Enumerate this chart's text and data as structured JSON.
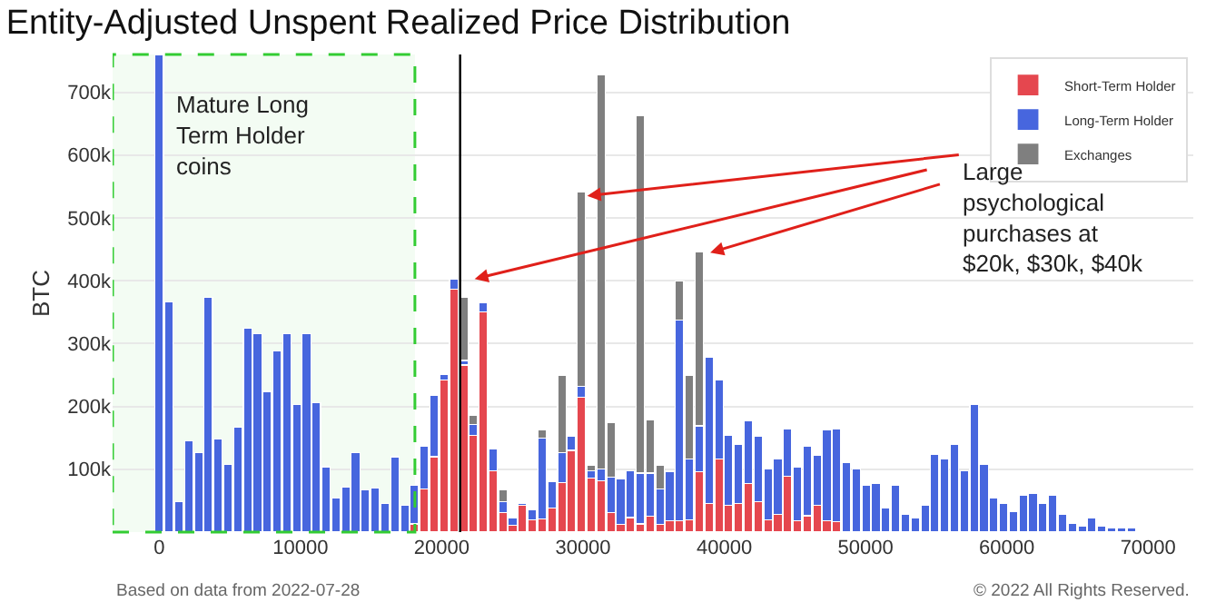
{
  "chart_data": {
    "type": "bar",
    "title": "Entity-Adjusted Unspent Realized Price Distribution",
    "ylabel": "BTC",
    "stacked": true,
    "grid": "y",
    "legend": "top right",
    "x": [
      0,
      695,
      1390,
      2085,
      2780,
      3475,
      4170,
      4865,
      5560,
      6255,
      6950,
      7645,
      8340,
      9035,
      9730,
      10425,
      11120,
      11815,
      12510,
      13205,
      13900,
      14595,
      15290,
      15985,
      16680,
      17375,
      18070,
      18765,
      19460,
      20155,
      20850,
      21545,
      22240,
      22935,
      23630,
      24325,
      25020,
      25715,
      26410,
      27105,
      27800,
      28495,
      29190,
      29885,
      30580,
      31275,
      31970,
      32665,
      33360,
      34055,
      34750,
      35445,
      36140,
      36835,
      37530,
      38225,
      38920,
      39615,
      40310,
      41005,
      41700,
      42395,
      43090,
      43785,
      44480,
      45175,
      45870,
      46565,
      47260,
      47955,
      48650,
      49345,
      50040,
      50735,
      51430,
      52125,
      52820,
      53515,
      54210,
      54905,
      55600,
      56295,
      56990,
      57685,
      58380,
      59075,
      59770,
      60465,
      61160,
      61855,
      62550,
      63245,
      63940,
      64635,
      65330,
      66025,
      66720,
      67415,
      68110,
      68805
    ],
    "xlim": [
      -3300,
      73200
    ],
    "xticks": [
      0,
      10000,
      20000,
      30000,
      40000,
      50000,
      60000,
      70000
    ],
    "ylim": [
      0,
      760000
    ],
    "yticks": [
      {
        "value": 100000,
        "label": "100k"
      },
      {
        "value": 200000,
        "label": "200k"
      },
      {
        "value": 300000,
        "label": "300k"
      },
      {
        "value": 400000,
        "label": "400k"
      },
      {
        "value": 500000,
        "label": "500k"
      },
      {
        "value": 600000,
        "label": "600k"
      },
      {
        "value": 700000,
        "label": "700k"
      }
    ],
    "series": [
      {
        "name": "Short-Term Holder",
        "color": "#e5474f",
        "values": [
          null,
          null,
          null,
          null,
          null,
          null,
          null,
          null,
          null,
          null,
          null,
          null,
          null,
          null,
          null,
          null,
          null,
          null,
          null,
          null,
          null,
          null,
          null,
          null,
          null,
          null,
          13000,
          69000,
          120000,
          242000,
          387000,
          266000,
          154000,
          350000,
          98000,
          31000,
          11000,
          43000,
          20000,
          21000,
          38000,
          79000,
          130000,
          215000,
          86000,
          82000,
          31000,
          12000,
          23000,
          13000,
          25000,
          12000,
          18000,
          18000,
          20000,
          96000,
          46000,
          116000,
          43000,
          46000,
          77000,
          48000,
          20000,
          28000,
          89000,
          18000,
          26000,
          43000,
          18000,
          17000,
          null,
          null,
          null,
          null,
          null,
          null,
          null,
          null,
          null,
          null,
          null,
          null,
          null,
          null,
          null,
          null,
          null,
          null,
          null,
          null,
          null,
          null,
          null,
          null,
          null,
          null,
          null,
          null,
          null,
          null
        ]
      },
      {
        "name": "Long-Term Holder",
        "color": "#4766de",
        "values": [
          760000,
          366000,
          48000,
          145000,
          127000,
          373000,
          148000,
          108000,
          167000,
          324000,
          316000,
          224000,
          288000,
          316000,
          203000,
          316000,
          206000,
          104000,
          54000,
          72000,
          127000,
          67000,
          70000,
          46000,
          120000,
          43000,
          62000,
          68000,
          97000,
          9000,
          15000,
          7000,
          17000,
          15000,
          35000,
          17000,
          11000,
          3000,
          15000,
          129000,
          42000,
          48000,
          22000,
          17000,
          12000,
          19000,
          57000,
          72000,
          75000,
          81000,
          69000,
          57000,
          78000,
          319000,
          96000,
          73000,
          233000,
          126000,
          111000,
          94000,
          100000,
          104000,
          81000,
          88000,
          75000,
          85000,
          111000,
          79000,
          144000,
          147000,
          111000,
          101000,
          74000,
          77000,
          38000,
          75000,
          28000,
          23000,
          43000,
          123000,
          117000,
          140000,
          98000,
          203000,
          108000,
          55000,
          46000,
          33000,
          59000,
          62000,
          45000,
          58000,
          28000,
          14000,
          9000,
          23000,
          9000,
          6000,
          6000,
          6000
        ]
      },
      {
        "name": "Exchanges",
        "color": "#7f7f7f",
        "values": [
          null,
          null,
          null,
          null,
          null,
          null,
          null,
          null,
          null,
          null,
          null,
          null,
          null,
          null,
          null,
          null,
          null,
          null,
          null,
          null,
          null,
          null,
          null,
          null,
          null,
          null,
          null,
          null,
          null,
          null,
          null,
          100000,
          15000,
          null,
          null,
          19000,
          null,
          null,
          null,
          12000,
          null,
          123000,
          null,
          309000,
          8000,
          626000,
          86000,
          null,
          null,
          568000,
          85000,
          37000,
          null,
          63000,
          134000,
          277000,
          null,
          null,
          null,
          null,
          null,
          null,
          null,
          null,
          null,
          null,
          null,
          null,
          null,
          null,
          null,
          null,
          null,
          null,
          null,
          null,
          null,
          null,
          null,
          null,
          null,
          null,
          null,
          null,
          null,
          null,
          null,
          null,
          null,
          null,
          null,
          null,
          null,
          null,
          null,
          null,
          null,
          null,
          null,
          null
        ]
      }
    ],
    "ref_lines": [
      {
        "axis": "x",
        "value": 21300,
        "color": "#000000"
      }
    ],
    "bands": [
      {
        "axis": "x",
        "from": -3300,
        "to": 18100,
        "label": "Mature Long\nTerm Holder\ncoins",
        "color": "#33cc33"
      }
    ],
    "annotations": [
      {
        "text": "Large\npsychological\npurchases at\n$20k, $30k, $40k",
        "x": 30300,
        "y": 535000
      },
      "Based on data from 2022-07-28",
      "© 2022 All Rights Reserved."
    ]
  }
}
